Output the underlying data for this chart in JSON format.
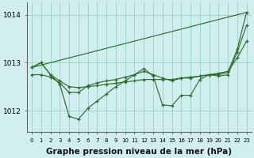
{
  "bg_color": "#d0eef0",
  "grid_color": "#88ccbb",
  "line_color": "#2d6e2d",
  "xlabel": "Graphe pression niveau de la mer (hPa)",
  "xlabel_fontsize": 7.5,
  "xlim": [
    -0.5,
    23.5
  ],
  "ylim": [
    1011.55,
    1014.25
  ],
  "yticks": [
    1012,
    1013,
    1014
  ],
  "xticks": [
    0,
    1,
    2,
    3,
    4,
    5,
    6,
    7,
    8,
    9,
    10,
    11,
    12,
    13,
    14,
    15,
    16,
    17,
    18,
    19,
    20,
    21,
    22,
    23
  ],
  "xtick_fontsize": 5.0,
  "ytick_fontsize": 6.5,
  "line1_x": [
    0,
    23
  ],
  "line1_y": [
    1012.9,
    1014.05
  ],
  "line2": [
    1012.9,
    1013.0,
    1012.75,
    1012.55,
    1011.88,
    1011.82,
    1012.05,
    1012.2,
    1012.35,
    1012.5,
    1012.62,
    1012.75,
    1012.88,
    1012.72,
    1012.12,
    1012.1,
    1012.32,
    1012.32,
    1012.65,
    1012.75,
    1012.75,
    1012.8,
    1013.28,
    1014.05
  ],
  "line3": [
    1012.75,
    1012.75,
    1012.7,
    1012.58,
    1012.38,
    1012.38,
    1012.52,
    1012.58,
    1012.62,
    1012.65,
    1012.7,
    1012.75,
    1012.82,
    1012.75,
    1012.68,
    1012.62,
    1012.68,
    1012.68,
    1012.72,
    1012.75,
    1012.72,
    1012.75,
    1013.22,
    1013.78
  ],
  "line4": [
    1012.9,
    1013.0,
    1012.75,
    1012.62,
    1012.5,
    1012.48,
    1012.5,
    1012.52,
    1012.55,
    1012.57,
    1012.6,
    1012.62,
    1012.65,
    1012.65,
    1012.65,
    1012.65,
    1012.68,
    1012.7,
    1012.72,
    1012.75,
    1012.78,
    1012.82,
    1013.1,
    1013.45
  ]
}
